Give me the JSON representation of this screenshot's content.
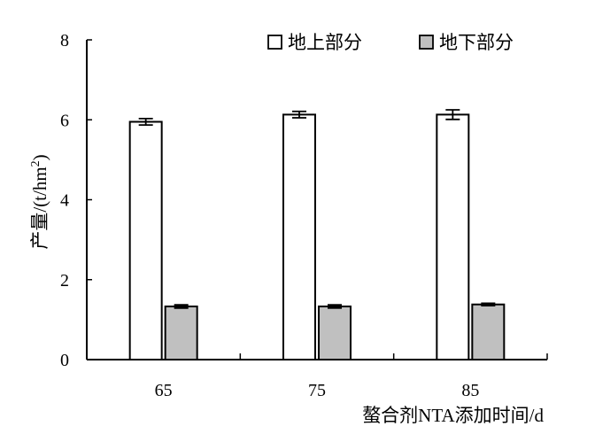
{
  "chart_data": {
    "type": "bar",
    "categories": [
      "65",
      "75",
      "85"
    ],
    "series": [
      {
        "name": "地上部分",
        "values": [
          5.95,
          6.13,
          6.13
        ],
        "errors": [
          0.08,
          0.08,
          0.12
        ],
        "color": "#ffffff"
      },
      {
        "name": "地下部分",
        "values": [
          1.33,
          1.33,
          1.38
        ],
        "errors": [
          0.04,
          0.04,
          0.03
        ],
        "color": "#c0c0c0"
      }
    ],
    "xlabel": "螯合剂NTA添加时间/d",
    "ylabel": "产量/(t/hm",
    "ylabel_superscript": "2",
    "ylabel_close": ")",
    "ylim": [
      0,
      8
    ],
    "yticks": [
      "0",
      "2",
      "4",
      "6",
      "8"
    ],
    "grid": false,
    "legend_position": "top-right"
  }
}
